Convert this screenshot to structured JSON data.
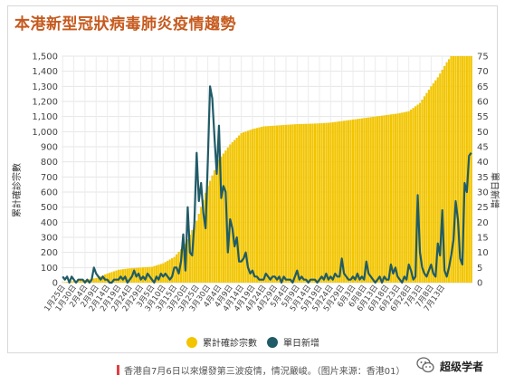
{
  "caption": "香港自7月6日以來爆發第三波疫情，情況嚴峻。（图片来源：香港01）",
  "watermark": "超级学者",
  "colors": {
    "cumulative": "#f2c500",
    "daily": "#205b67",
    "title": "#c65a1e"
  },
  "chart_data": {
    "type": "bar+line",
    "title": "本港新型冠狀病毒肺炎疫情趨勢",
    "ylabel_left": "累計確診宗數",
    "ylabel_right": "單日新增",
    "ylim_left": [
      0,
      1500
    ],
    "ylim_right": [
      0,
      75
    ],
    "yticks_left": [
      "0",
      "100",
      "200",
      "300",
      "400",
      "500",
      "600",
      "700",
      "800",
      "900",
      "1,000",
      "1,100",
      "1,200",
      "1,300",
      "1,400",
      "1,500"
    ],
    "yticks_right": [
      "0",
      "5",
      "10",
      "15",
      "20",
      "25",
      "30",
      "35",
      "40",
      "45",
      "50",
      "55",
      "60",
      "65",
      "70",
      "75"
    ],
    "xticks": [
      "1月25日",
      "1月30日",
      "2月4日",
      "2月9日",
      "2月14日",
      "2月19日",
      "2月24日",
      "2月29日",
      "3月5日",
      "3月10日",
      "3月15日",
      "3月20日",
      "3月25日",
      "3月30日",
      "4月4日",
      "4月9日",
      "4月14日",
      "4月19日",
      "4月24日",
      "4月29日",
      "5月4日",
      "5月9日",
      "5月14日",
      "5月19日",
      "5月24日",
      "5月29日",
      "6月3日",
      "6月8日",
      "6月13日",
      "6月18日",
      "6月23日",
      "6月28日",
      "7月3日",
      "7月8日",
      "7月13日"
    ],
    "legend": {
      "position": "bottom",
      "entries": [
        "累計確診宗數",
        "單日新增"
      ]
    },
    "series": [
      {
        "name": "累計確診宗數",
        "kind": "bar",
        "axis": "left",
        "keypoints": [
          [
            0,
            2
          ],
          [
            5,
            10
          ],
          [
            10,
            18
          ],
          [
            15,
            30
          ],
          [
            20,
            60
          ],
          [
            25,
            85
          ],
          [
            30,
            95
          ],
          [
            35,
            100
          ],
          [
            40,
            105
          ],
          [
            45,
            128
          ],
          [
            50,
            170
          ],
          [
            55,
            257
          ],
          [
            60,
            410
          ],
          [
            65,
            640
          ],
          [
            70,
            815
          ],
          [
            75,
            915
          ],
          [
            80,
            990
          ],
          [
            85,
            1017
          ],
          [
            90,
            1035
          ],
          [
            95,
            1040
          ],
          [
            100,
            1045
          ],
          [
            105,
            1050
          ],
          [
            110,
            1052
          ],
          [
            115,
            1055
          ],
          [
            120,
            1060
          ],
          [
            125,
            1070
          ],
          [
            130,
            1080
          ],
          [
            135,
            1090
          ],
          [
            140,
            1100
          ],
          [
            145,
            1110
          ],
          [
            150,
            1120
          ],
          [
            155,
            1135
          ],
          [
            160,
            1190
          ],
          [
            162,
            1234
          ],
          [
            165,
            1300
          ],
          [
            168,
            1360
          ],
          [
            170,
            1410
          ],
          [
            172,
            1460
          ],
          [
            174,
            1500
          ]
        ]
      },
      {
        "name": "單日新增",
        "kind": "line",
        "axis": "right",
        "values": [
          2,
          1,
          2,
          0,
          2,
          1,
          0,
          1,
          1,
          1,
          0,
          1,
          0,
          1,
          5,
          3,
          2,
          1,
          2,
          1,
          1,
          0,
          0,
          1,
          1,
          1,
          2,
          1,
          2,
          0,
          1,
          2,
          4,
          2,
          3,
          1,
          2,
          1,
          3,
          2,
          1,
          0,
          2,
          1,
          3,
          2,
          3,
          2,
          1,
          2,
          5,
          5,
          3,
          7,
          16,
          4,
          25,
          10,
          9,
          20,
          43,
          27,
          33,
          23,
          18,
          40,
          65,
          61,
          48,
          36,
          52,
          28,
          32,
          30,
          10,
          21,
          18,
          12,
          15,
          7,
          7,
          8,
          10,
          5,
          3,
          4,
          2,
          2,
          1,
          1,
          1,
          3,
          2,
          1,
          2,
          2,
          1,
          2,
          0,
          2,
          1,
          1,
          1,
          0,
          2,
          4,
          1,
          2,
          1,
          1,
          0,
          1,
          1,
          1,
          0,
          1,
          2,
          1,
          3,
          1,
          2,
          1,
          3,
          2,
          2,
          8,
          3,
          2,
          1,
          1,
          2,
          1,
          3,
          1,
          2,
          1,
          7,
          3,
          2,
          1,
          0,
          1,
          2,
          0,
          2,
          1,
          1,
          6,
          3,
          5,
          2,
          1,
          0,
          2,
          1,
          6,
          4,
          1,
          2,
          29,
          10,
          5,
          3,
          2,
          4,
          6,
          3,
          2,
          13,
          9,
          24,
          4,
          2,
          5,
          9,
          14,
          27,
          21,
          8,
          6,
          33,
          30,
          42,
          43
        ]
      }
    ]
  }
}
